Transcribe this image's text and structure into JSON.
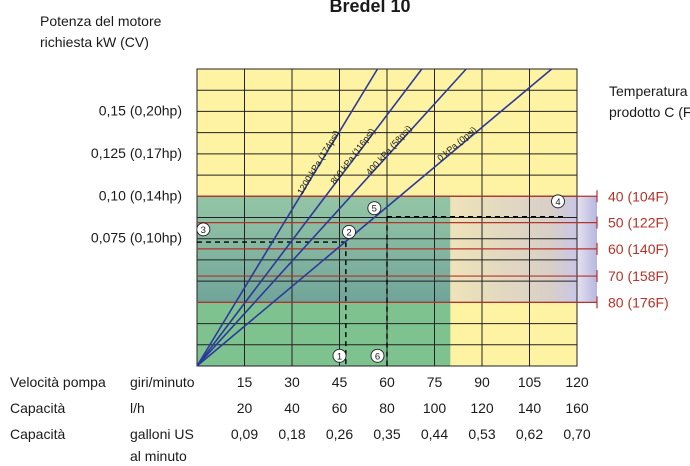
{
  "chart_data": {
    "type": "line",
    "title": "Bredel 10",
    "ylabel_lines": [
      "Potenza del motore",
      "richiesta kW (CV)"
    ],
    "right_label_lines": [
      "Temperatura",
      "prodotto C (F)"
    ],
    "x": [
      0,
      15,
      30,
      45,
      60,
      75,
      90,
      105,
      120
    ],
    "xlim": [
      0,
      120
    ],
    "ylim": [
      0,
      0.175
    ],
    "y_ticks": [
      {
        "value": 0.15,
        "label": "0,15 (0,20hp)"
      },
      {
        "value": 0.125,
        "label": "0,125 (0,17hp)"
      },
      {
        "value": 0.1,
        "label": "0,10 (0,14hp)"
      },
      {
        "value": 0.075,
        "label": "0,075 (0,10hp)"
      }
    ],
    "temperature_lines": [
      {
        "value": 0.1,
        "label": "40 (104F)"
      },
      {
        "value": 0.0845,
        "label": "50 (122F)"
      },
      {
        "value": 0.069,
        "label": "60 (140F)"
      },
      {
        "value": 0.053,
        "label": "70 (158F)"
      },
      {
        "value": 0.0375,
        "label": "80 (176F)"
      }
    ],
    "series": [
      {
        "name": "1200 kPa (174psi)",
        "points": [
          [
            0,
            0
          ],
          [
            57,
            0.175
          ]
        ]
      },
      {
        "name": "800 kPa (116psi)",
        "points": [
          [
            0,
            0
          ],
          [
            71,
            0.175
          ]
        ]
      },
      {
        "name": "400 kPa (58psi)",
        "points": [
          [
            0,
            0
          ],
          [
            85,
            0.175
          ]
        ]
      },
      {
        "name": "0 kPa (0psi)",
        "points": [
          [
            0,
            0
          ],
          [
            112,
            0.175
          ]
        ]
      }
    ],
    "markers": [
      {
        "label": "1",
        "x": 45,
        "y": 0.006
      },
      {
        "label": "2",
        "x": 48,
        "y": 0.079
      },
      {
        "label": "3",
        "x": 2,
        "y": 0.0805
      },
      {
        "label": "4",
        "x": 114,
        "y": 0.097
      },
      {
        "label": "5",
        "x": 56,
        "y": 0.093
      },
      {
        "label": "6",
        "x": 57,
        "y": 0.006
      }
    ],
    "guides": [
      {
        "from": [
          0,
          0.073
        ],
        "to": [
          47,
          0.073
        ]
      },
      {
        "from": [
          47,
          0.073
        ],
        "to": [
          47,
          0
        ]
      },
      {
        "from": [
          60,
          0.088
        ],
        "to": [
          116,
          0.088
        ]
      },
      {
        "from": [
          60,
          0.088
        ],
        "to": [
          60,
          0
        ]
      }
    ],
    "table": {
      "rows": [
        {
          "label": "Velocità pompa",
          "unit": [
            "giri/minuto"
          ],
          "values": [
            "15",
            "30",
            "45",
            "60",
            "75",
            "90",
            "105",
            "120"
          ]
        },
        {
          "label": "Capacità",
          "unit": [
            "l/h"
          ],
          "values": [
            "20",
            "40",
            "60",
            "80",
            "100",
            "120",
            "140",
            "160"
          ]
        },
        {
          "label": "Capacità",
          "unit": [
            "galloni US",
            "al minuto"
          ],
          "values": [
            "0,09",
            "0,18",
            "0,26",
            "0,35",
            "0,44",
            "0,53",
            "0,62",
            "0,70"
          ]
        }
      ]
    }
  },
  "colors": {
    "yellow": "#fdf3a2",
    "green": "#7ec28f",
    "temperature": "#b5322a",
    "series": "#2d3a9a",
    "guide": "#000000"
  }
}
